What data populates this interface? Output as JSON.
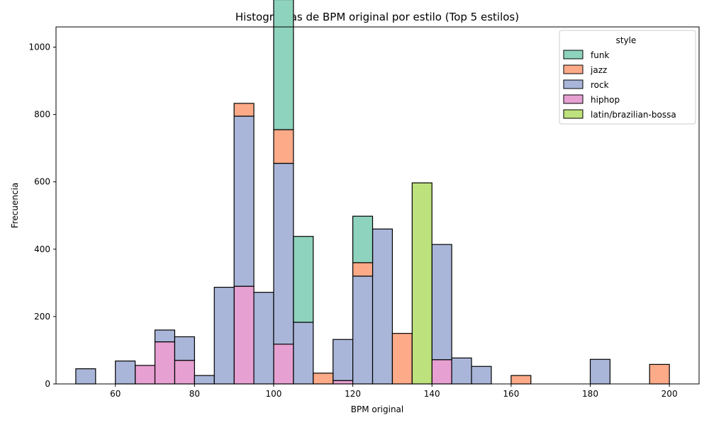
{
  "chart_data": {
    "type": "bar",
    "stacked": true,
    "title": "Histogramas de BPM original por estilo (Top 5 estilos)",
    "xlabel": "BPM original",
    "ylabel": "Frecuencia",
    "xlim": [
      45,
      207.5
    ],
    "ylim": [
      0,
      1060
    ],
    "xticks": [
      60,
      80,
      100,
      120,
      140,
      160,
      180,
      200
    ],
    "yticks": [
      0,
      200,
      400,
      600,
      800,
      1000
    ],
    "bin_width": 5,
    "bins_start": [
      50,
      55,
      60,
      65,
      70,
      75,
      80,
      85,
      90,
      95,
      100,
      105,
      110,
      115,
      120,
      125,
      130,
      135,
      140,
      145,
      150,
      155,
      160,
      165,
      170,
      175,
      180,
      185,
      190,
      195
    ],
    "series": [
      {
        "name": "hiphop",
        "color": "#e7a0d2",
        "values": [
          0,
          0,
          0,
          55,
          125,
          70,
          0,
          0,
          290,
          0,
          118,
          0,
          0,
          10,
          0,
          0,
          0,
          0,
          72,
          0,
          0,
          0,
          0,
          0,
          0,
          0,
          0,
          0,
          0,
          0
        ]
      },
      {
        "name": "rock",
        "color": "#a9b6d9",
        "values": [
          45,
          0,
          68,
          0,
          35,
          70,
          25,
          287,
          505,
          272,
          537,
          183,
          0,
          122,
          320,
          460,
          0,
          0,
          342,
          77,
          52,
          0,
          0,
          0,
          0,
          0,
          73,
          0,
          0,
          0
        ]
      },
      {
        "name": "jazz",
        "color": "#fdaa88",
        "values": [
          0,
          0,
          0,
          0,
          0,
          0,
          0,
          0,
          38,
          0,
          100,
          0,
          32,
          0,
          40,
          0,
          150,
          0,
          0,
          0,
          0,
          0,
          25,
          0,
          0,
          0,
          0,
          0,
          0,
          58
        ]
      },
      {
        "name": "funk",
        "color": "#8ed3bd",
        "values": [
          0,
          0,
          0,
          0,
          0,
          0,
          0,
          0,
          0,
          0,
          386,
          255,
          0,
          0,
          138,
          0,
          0,
          0,
          0,
          0,
          0,
          0,
          0,
          0,
          0,
          0,
          0,
          0,
          0,
          0
        ]
      },
      {
        "name": "latin/brazilian-bossa",
        "color": "#bde17d",
        "values": [
          0,
          0,
          0,
          0,
          0,
          0,
          0,
          0,
          0,
          0,
          0,
          0,
          0,
          0,
          0,
          0,
          0,
          597,
          0,
          0,
          0,
          0,
          0,
          0,
          0,
          0,
          0,
          0,
          0,
          0
        ]
      }
    ],
    "legend": {
      "title": "style",
      "position": "top-right",
      "entries": [
        "funk",
        "jazz",
        "rock",
        "hiphop",
        "latin/brazilian-bossa"
      ]
    },
    "grid": false
  }
}
